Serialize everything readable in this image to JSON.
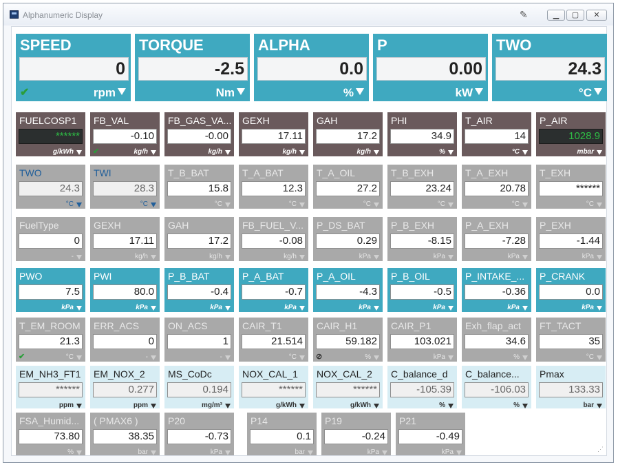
{
  "window": {
    "title": "Alphanumeric Display"
  },
  "icons": {
    "app": "app-icon",
    "pin": "pin-icon",
    "minimize": "minimize-icon",
    "maximize": "maximize-icon",
    "close": "close-icon"
  },
  "big": [
    {
      "name": "SPEED",
      "value": "0",
      "unit": "rpm",
      "check": true
    },
    {
      "name": "TORQUE",
      "value": "-2.5",
      "unit": "Nm",
      "check": false
    },
    {
      "name": "ALPHA",
      "value": "0.0",
      "unit": "%",
      "check": false
    },
    {
      "name": "P",
      "value": "0.00",
      "unit": "kW",
      "check": false
    },
    {
      "name": "TWO",
      "value": "24.3",
      "unit": "°C",
      "check": false
    }
  ],
  "rows": [
    [
      {
        "name": "FUELCOSP1",
        "value": "******",
        "unit": "g/kWh",
        "style": "brown",
        "box": "dark"
      },
      {
        "name": "FB_VAL",
        "value": "-0.10",
        "unit": "kg/h",
        "style": "brown",
        "check": true
      },
      {
        "name": "FB_GAS_VA...",
        "value": "-0.00",
        "unit": "kg/h",
        "style": "brown"
      },
      {
        "name": "GEXH",
        "value": "17.11",
        "unit": "kg/h",
        "style": "brown"
      },
      {
        "name": "GAH",
        "value": "17.2",
        "unit": "kg/h",
        "style": "brown"
      },
      {
        "name": "PHI",
        "value": "34.9",
        "unit": "%",
        "style": "brown"
      },
      {
        "name": "T_AIR",
        "value": "14",
        "unit": "°C",
        "style": "brown"
      },
      {
        "name": "P_AIR",
        "value": "1028.9",
        "unit": "mbar",
        "style": "brown",
        "box": "dark"
      }
    ],
    [
      {
        "name": "TWO",
        "value": "24.3",
        "unit": "°C",
        "style": "grey",
        "variant": "blueish",
        "box": "pale"
      },
      {
        "name": "TWI",
        "value": "28.3",
        "unit": "°C",
        "style": "grey",
        "variant": "blueish",
        "box": "pale"
      },
      {
        "name": "T_B_BAT",
        "value": "15.8",
        "unit": "°C",
        "style": "grey"
      },
      {
        "name": "T_A_BAT",
        "value": "12.3",
        "unit": "°C",
        "style": "grey"
      },
      {
        "name": "T_A_OIL",
        "value": "27.2",
        "unit": "°C",
        "style": "grey"
      },
      {
        "name": "T_B_EXH",
        "value": "23.24",
        "unit": "°C",
        "style": "grey"
      },
      {
        "name": "T_A_EXH",
        "value": "20.78",
        "unit": "°C",
        "style": "grey"
      },
      {
        "name": "T_EXH",
        "value": "******",
        "unit": "°C",
        "style": "grey"
      }
    ],
    [
      {
        "name": "FuelType",
        "value": "0",
        "unit": "-",
        "style": "grey"
      },
      {
        "name": "GEXH",
        "value": "17.11",
        "unit": "kg/h",
        "style": "grey"
      },
      {
        "name": "GAH",
        "value": "17.2",
        "unit": "kg/h",
        "style": "grey"
      },
      {
        "name": "FB_FUEL_V...",
        "value": "-0.08",
        "unit": "kg/h",
        "style": "grey"
      },
      {
        "name": "P_DS_BAT",
        "value": "0.29",
        "unit": "kPa",
        "style": "grey"
      },
      {
        "name": "P_B_EXH",
        "value": "-8.15",
        "unit": "kPa",
        "style": "grey"
      },
      {
        "name": "P_A_EXH",
        "value": "-7.28",
        "unit": "kPa",
        "style": "grey"
      },
      {
        "name": "P_EXH",
        "value": "-1.44",
        "unit": "kPa",
        "style": "grey"
      }
    ],
    [
      {
        "name": "PWO",
        "value": "7.5",
        "unit": "kPa",
        "style": "blue"
      },
      {
        "name": "PWI",
        "value": "80.0",
        "unit": "kPa",
        "style": "blue"
      },
      {
        "name": "P_B_BAT",
        "value": "-0.4",
        "unit": "kPa",
        "style": "blue"
      },
      {
        "name": "P_A_BAT",
        "value": "-0.7",
        "unit": "kPa",
        "style": "blue"
      },
      {
        "name": "P_A_OIL",
        "value": "-4.3",
        "unit": "kPa",
        "style": "blue"
      },
      {
        "name": "P_B_OIL",
        "value": "-0.5",
        "unit": "kPa",
        "style": "blue"
      },
      {
        "name": "P_INTAKE_...",
        "value": "-0.36",
        "unit": "kPa",
        "style": "blue"
      },
      {
        "name": "P_CRANK",
        "value": "0.0",
        "unit": "kPa",
        "style": "blue"
      }
    ],
    [
      {
        "name": "T_EM_ROOM",
        "value": "21.3",
        "unit": "°C",
        "style": "grey",
        "check": true
      },
      {
        "name": "ERR_ACS",
        "value": "0",
        "unit": "-",
        "style": "grey"
      },
      {
        "name": "ON_ACS",
        "value": "1",
        "unit": "-",
        "style": "grey"
      },
      {
        "name": "CAIR_T1",
        "value": "21.514",
        "unit": "°C",
        "style": "grey"
      },
      {
        "name": "CAIR_H1",
        "value": "59.182",
        "unit": "%",
        "style": "grey",
        "nosign": true
      },
      {
        "name": "CAIR_P1",
        "value": "103.021",
        "unit": "kPa",
        "style": "grey"
      },
      {
        "name": "Exh_flap_act",
        "value": "34.6",
        "unit": "%",
        "style": "grey"
      },
      {
        "name": "FT_TACT",
        "value": "35",
        "unit": "°C",
        "style": "grey"
      }
    ],
    [
      {
        "name": "EM_NH3_FT1",
        "value": "******",
        "unit": "ppm",
        "style": "light",
        "box": "pale"
      },
      {
        "name": "EM_NOX_2",
        "value": "0.277",
        "unit": "ppm",
        "style": "light",
        "box": "pale"
      },
      {
        "name": "MS_CoDc",
        "value": "0.194",
        "unit": "mg/m³",
        "style": "light",
        "box": "pale"
      },
      {
        "name": "NOX_CAL_1",
        "value": "******",
        "unit": "g/kWh",
        "style": "light",
        "box": "pale"
      },
      {
        "name": "NOX_CAL_2",
        "value": "******",
        "unit": "g/kWh",
        "style": "light",
        "box": "pale"
      },
      {
        "name": "C_balance_d",
        "value": "-105.39",
        "unit": "%",
        "style": "light",
        "box": "pale"
      },
      {
        "name": "C_balance...",
        "value": "-106.03",
        "unit": "%",
        "style": "light",
        "box": "pale"
      },
      {
        "name": "Pmax",
        "value": "133.33",
        "unit": "bar",
        "style": "light",
        "box": "pale"
      }
    ],
    [
      {
        "name": "FSA_Humid...",
        "value": "73.80",
        "unit": "%",
        "style": "grey"
      },
      {
        "name": "( PMAX6 )",
        "value": "38.35",
        "unit": "bar",
        "style": "grey"
      },
      {
        "name": "P20",
        "value": "-0.73",
        "unit": "kPa",
        "style": "grey"
      },
      {
        "name": "P14",
        "value": "0.1",
        "unit": "bar",
        "style": "grey"
      },
      {
        "name": "P19",
        "value": "-0.24",
        "unit": "kPa",
        "style": "grey"
      },
      {
        "name": "P21",
        "value": "-0.49",
        "unit": "kPa",
        "style": "grey"
      }
    ]
  ]
}
